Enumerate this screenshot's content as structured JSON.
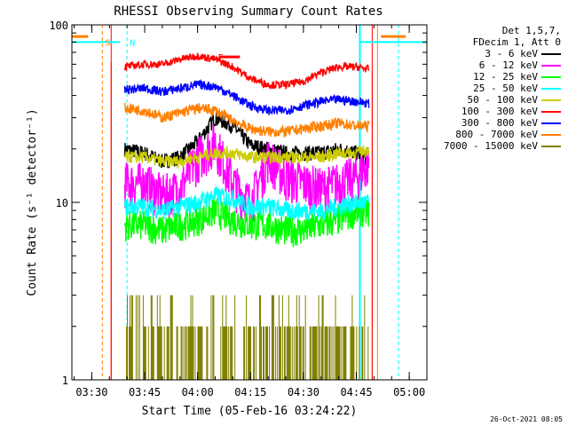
{
  "chart_data": {
    "type": "line",
    "title": "RHESSI Observing Summary Count Rates",
    "xlabel": "Start Time (05-Feb-16 03:24:22)",
    "ylabel": "Count Rate (s⁻¹ detector⁻¹)",
    "y_scale": "log",
    "ylim": [
      1,
      100
    ],
    "y_ticks": [
      "1",
      "10",
      "100"
    ],
    "xlim": [
      "03:24:22",
      "05:05:00"
    ],
    "x_ticks": [
      "03:30",
      "03:45",
      "04:00",
      "04:15",
      "04:30",
      "04:45",
      "05:00"
    ],
    "grid": false,
    "legend_position": "right",
    "legend_header": [
      "Det 1,5,7,",
      "FDecim 1, Att 0"
    ],
    "observation_window": [
      "03:35:30",
      "04:49:30"
    ],
    "series": [
      {
        "name": "3 - 6 keV",
        "color": "#000000",
        "x": [
          "03:39",
          "03:45",
          "03:50",
          "03:55",
          "04:00",
          "04:05",
          "04:10",
          "04:15",
          "04:20",
          "04:25",
          "04:30",
          "04:35",
          "04:40",
          "04:45",
          "04:49"
        ],
        "values": [
          20,
          19,
          17,
          18,
          22,
          30,
          27,
          21,
          20,
          19,
          19,
          19,
          20,
          19,
          17
        ]
      },
      {
        "name": "6 - 12 keV",
        "color": "#ff00ff",
        "x": [
          "03:39",
          "03:45",
          "03:50",
          "03:55",
          "04:00",
          "04:05",
          "04:10",
          "04:15",
          "04:20",
          "04:25",
          "04:30",
          "04:35",
          "04:40",
          "04:45",
          "04:49"
        ],
        "values": [
          13,
          13,
          11,
          12,
          18,
          22,
          13,
          10,
          18,
          14,
          13,
          12,
          13,
          14,
          17
        ]
      },
      {
        "name": "12 - 25 keV",
        "color": "#00ff00",
        "x": [
          "03:39",
          "03:45",
          "03:50",
          "03:55",
          "04:00",
          "04:05",
          "04:10",
          "04:15",
          "04:20",
          "04:25",
          "04:30",
          "04:35",
          "04:40",
          "04:45",
          "04:49"
        ],
        "values": [
          7.5,
          7.5,
          7,
          7.5,
          8,
          9,
          8,
          7.5,
          7.5,
          7,
          7,
          7.5,
          8,
          9,
          9
        ]
      },
      {
        "name": "25 - 50 keV",
        "color": "#00ffff",
        "x": [
          "03:39",
          "03:45",
          "03:50",
          "03:55",
          "04:00",
          "04:05",
          "04:10",
          "04:15",
          "04:20",
          "04:25",
          "04:30",
          "04:35",
          "04:40",
          "04:45",
          "04:49"
        ],
        "values": [
          9.5,
          9.5,
          9,
          9.5,
          10,
          11,
          10.5,
          9.5,
          9.5,
          9,
          9,
          9,
          9.5,
          10,
          10
        ]
      },
      {
        "name": "50 - 100 keV",
        "color": "#cccc00",
        "x": [
          "03:39",
          "03:45",
          "03:50",
          "03:55",
          "04:00",
          "04:05",
          "04:10",
          "04:15",
          "04:20",
          "04:25",
          "04:30",
          "04:35",
          "04:40",
          "04:45",
          "04:49"
        ],
        "values": [
          18,
          18,
          17,
          17,
          18,
          19,
          19,
          18,
          18,
          18,
          18,
          18,
          19,
          19,
          20
        ]
      },
      {
        "name": "100 - 300 keV",
        "color": "#ff0000",
        "x": [
          "03:39",
          "03:45",
          "03:50",
          "03:55",
          "04:00",
          "04:05",
          "04:10",
          "04:15",
          "04:20",
          "04:25",
          "04:30",
          "04:35",
          "04:40",
          "04:45",
          "04:49"
        ],
        "values": [
          58,
          60,
          60,
          64,
          67,
          64,
          58,
          50,
          46,
          46,
          48,
          54,
          58,
          58,
          56
        ]
      },
      {
        "name": "300 - 800 keV",
        "color": "#0000ff",
        "x": [
          "03:39",
          "03:45",
          "03:50",
          "03:55",
          "04:00",
          "04:05",
          "04:10",
          "04:15",
          "04:20",
          "04:25",
          "04:30",
          "04:35",
          "04:40",
          "04:45",
          "04:49"
        ],
        "values": [
          43,
          44,
          42,
          44,
          46,
          45,
          40,
          35,
          33,
          33,
          35,
          37,
          38,
          37,
          36
        ]
      },
      {
        "name": "800 - 7000 keV",
        "color": "#ff8000",
        "x": [
          "03:39",
          "03:45",
          "03:50",
          "03:55",
          "04:00",
          "04:05",
          "04:10",
          "04:15",
          "04:20",
          "04:25",
          "04:30",
          "04:35",
          "04:40",
          "04:45",
          "04:49"
        ],
        "values": [
          34,
          33,
          30,
          32,
          34,
          33,
          29,
          26,
          25,
          25,
          26,
          27,
          28,
          27,
          27
        ]
      },
      {
        "name": "7000 - 15000 keV",
        "color": "#808000",
        "x": [
          "03:39",
          "03:45",
          "03:50",
          "03:55",
          "04:00",
          "04:05",
          "04:10",
          "04:15",
          "04:20",
          "04:25",
          "04:30",
          "04:35",
          "04:40",
          "04:45",
          "04:49"
        ],
        "values": [
          2,
          1.5,
          1.5,
          2,
          2.5,
          2,
          1.5,
          1.5,
          1.5,
          1.5,
          1.5,
          1.5,
          2,
          2.5,
          2
        ]
      }
    ],
    "annotations": [
      {
        "text": "S",
        "color": "#ff8000",
        "time": "03:33:00",
        "value": 80
      },
      {
        "text": "N",
        "color": "#00ffff",
        "time": "03:40:00",
        "value": 80
      },
      {
        "text": "F",
        "color": "#ff0000",
        "time": "04:05:00",
        "value": 66
      }
    ]
  },
  "timestamp": "26-Oct-2021 08:05"
}
